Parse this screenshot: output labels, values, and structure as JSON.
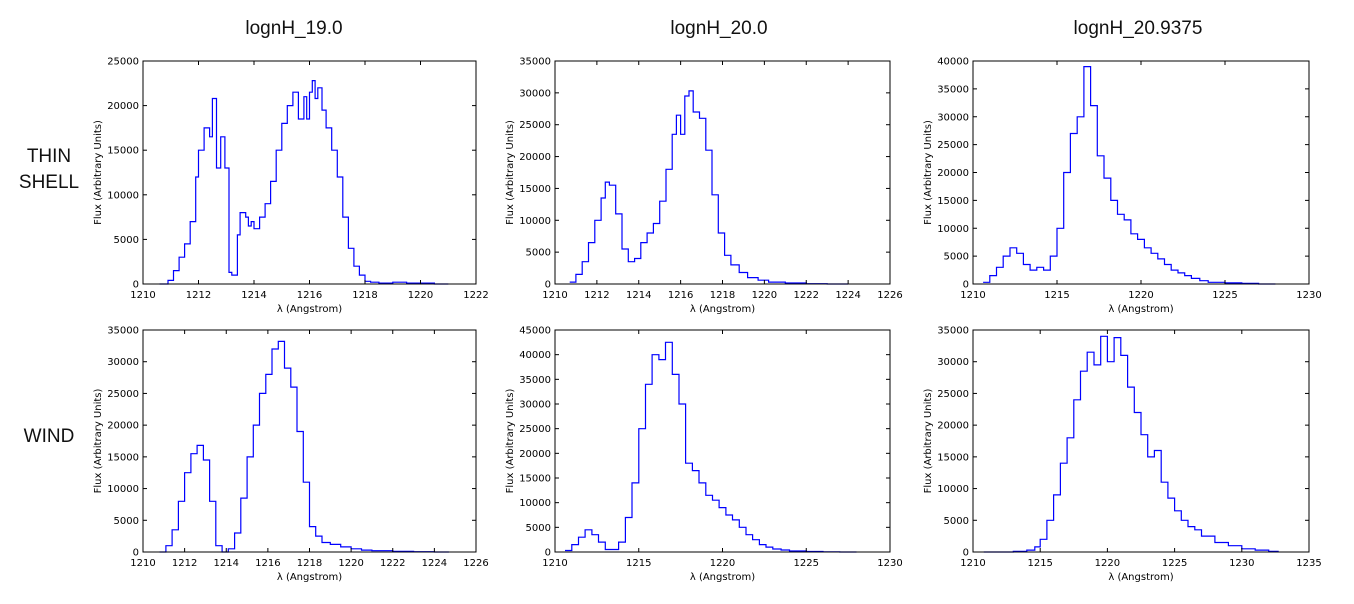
{
  "column_titles": [
    "lognH_19.0",
    "lognH_20.0",
    "lognH_20.9375"
  ],
  "row_labels": {
    "thin_shell_line1": "THIN",
    "thin_shell_line2": "SHELL",
    "wind": "WIND"
  },
  "colors": {
    "line": "#0000ff",
    "axis": "#000000",
    "background": "#ffffff"
  },
  "chart_data": [
    {
      "type": "line",
      "drawstyle": "steps",
      "title": "lognH_19.0",
      "row": "THIN SHELL",
      "xlabel": "λ (Angstrom)",
      "ylabel": "Flux (Arbitrary Units)",
      "xlim": [
        1210,
        1222
      ],
      "ylim": [
        0,
        25000
      ],
      "xticks": [
        1210,
        1212,
        1214,
        1216,
        1218,
        1220,
        1222
      ],
      "yticks": [
        0,
        5000,
        10000,
        15000,
        20000,
        25000
      ],
      "x": [
        1210.6,
        1210.9,
        1211.1,
        1211.3,
        1211.5,
        1211.7,
        1211.9,
        1212.0,
        1212.2,
        1212.4,
        1212.5,
        1212.65,
        1212.8,
        1212.95,
        1213.1,
        1213.2,
        1213.3,
        1213.4,
        1213.5,
        1213.7,
        1213.8,
        1213.9,
        1214.0,
        1214.2,
        1214.4,
        1214.6,
        1214.8,
        1215.0,
        1215.2,
        1215.4,
        1215.6,
        1215.8,
        1215.9,
        1216.0,
        1216.1,
        1216.2,
        1216.3,
        1216.45,
        1216.6,
        1216.8,
        1217.0,
        1217.2,
        1217.4,
        1217.6,
        1217.8,
        1218.0,
        1218.2,
        1218.5,
        1219.0,
        1219.5,
        1220.0,
        1220.5,
        1221.0
      ],
      "y": [
        0,
        400,
        1500,
        3000,
        4500,
        7000,
        12000,
        15000,
        17500,
        16500,
        20800,
        13000,
        16500,
        13000,
        1300,
        1000,
        1000,
        5500,
        8000,
        7500,
        6500,
        7000,
        6200,
        7500,
        9000,
        11500,
        15000,
        18000,
        20000,
        21500,
        18500,
        21000,
        18500,
        21500,
        22800,
        20800,
        22000,
        19500,
        17500,
        15000,
        12000,
        7500,
        4000,
        2000,
        1000,
        300,
        200,
        100,
        200,
        100,
        100,
        0,
        0
      ]
    },
    {
      "type": "line",
      "drawstyle": "steps",
      "title": "lognH_20.0",
      "row": "THIN SHELL",
      "xlabel": "λ (Angstrom)",
      "ylabel": "Flux (Arbitrary Units)",
      "xlim": [
        1210,
        1226
      ],
      "ylim": [
        0,
        35000
      ],
      "xticks": [
        1210,
        1212,
        1214,
        1216,
        1218,
        1220,
        1222,
        1224,
        1226
      ],
      "yticks": [
        0,
        5000,
        10000,
        15000,
        20000,
        25000,
        30000,
        35000
      ],
      "x": [
        1210.7,
        1211.0,
        1211.3,
        1211.6,
        1211.9,
        1212.2,
        1212.4,
        1212.6,
        1212.9,
        1213.2,
        1213.5,
        1213.8,
        1214.1,
        1214.4,
        1214.7,
        1215.0,
        1215.3,
        1215.6,
        1215.8,
        1216.0,
        1216.2,
        1216.4,
        1216.6,
        1216.9,
        1217.2,
        1217.5,
        1217.8,
        1218.1,
        1218.4,
        1218.8,
        1219.2,
        1219.7,
        1220.2,
        1221.0,
        1222.0,
        1223.0,
        1224.0
      ],
      "y": [
        300,
        1500,
        3500,
        6500,
        10000,
        13500,
        16000,
        15500,
        11000,
        5500,
        3500,
        4000,
        6500,
        8000,
        9500,
        13000,
        18000,
        23500,
        26500,
        23500,
        29500,
        30300,
        27000,
        26000,
        21000,
        14000,
        8000,
        4500,
        3000,
        1800,
        1000,
        600,
        300,
        150,
        50,
        0,
        0
      ]
    },
    {
      "type": "line",
      "drawstyle": "steps",
      "title": "lognH_20.9375",
      "row": "THIN SHELL",
      "xlabel": "λ (Angstrom)",
      "ylabel": "Flux (Arbitrary Units)",
      "xlim": [
        1210,
        1230
      ],
      "ylim": [
        0,
        40000
      ],
      "xticks": [
        1210,
        1215,
        1220,
        1225,
        1230
      ],
      "yticks": [
        0,
        5000,
        10000,
        15000,
        20000,
        25000,
        30000,
        35000,
        40000
      ],
      "x": [
        1210.6,
        1211.0,
        1211.4,
        1211.8,
        1212.2,
        1212.6,
        1213.0,
        1213.4,
        1213.8,
        1214.2,
        1214.6,
        1215.0,
        1215.4,
        1215.8,
        1216.2,
        1216.6,
        1217.0,
        1217.4,
        1217.8,
        1218.2,
        1218.6,
        1219.0,
        1219.4,
        1219.8,
        1220.2,
        1220.6,
        1221.0,
        1221.4,
        1221.8,
        1222.2,
        1222.6,
        1223.0,
        1223.5,
        1224.0,
        1225.0,
        1226.0,
        1227.0,
        1228.0
      ],
      "y": [
        300,
        1500,
        3000,
        5000,
        6500,
        5500,
        3500,
        2500,
        3000,
        2500,
        5000,
        10000,
        20000,
        27000,
        30000,
        39000,
        32000,
        23000,
        19000,
        15000,
        12500,
        11500,
        9000,
        8000,
        6500,
        5500,
        4500,
        3500,
        2500,
        2000,
        1500,
        1000,
        600,
        300,
        200,
        100,
        0,
        0
      ]
    },
    {
      "type": "line",
      "drawstyle": "steps",
      "title": "lognH_19.0",
      "row": "WIND",
      "xlabel": "λ (Angstrom)",
      "ylabel": "Flux (Arbitrary Units)",
      "xlim": [
        1210,
        1226
      ],
      "ylim": [
        0,
        35000
      ],
      "xticks": [
        1210,
        1212,
        1214,
        1216,
        1218,
        1220,
        1222,
        1224,
        1226
      ],
      "yticks": [
        0,
        5000,
        10000,
        15000,
        20000,
        25000,
        30000,
        35000
      ],
      "x": [
        1210.8,
        1211.1,
        1211.4,
        1211.7,
        1212.0,
        1212.3,
        1212.6,
        1212.9,
        1213.2,
        1213.5,
        1213.8,
        1214.1,
        1214.4,
        1214.7,
        1215.0,
        1215.3,
        1215.6,
        1215.9,
        1216.2,
        1216.5,
        1216.8,
        1217.1,
        1217.4,
        1217.7,
        1218.0,
        1218.3,
        1218.6,
        1219.0,
        1219.5,
        1220.0,
        1220.5,
        1221.0,
        1222.0,
        1223.0,
        1224.0,
        1224.7
      ],
      "y": [
        0,
        1000,
        3500,
        8000,
        12500,
        15500,
        16800,
        14500,
        8000,
        1000,
        0,
        500,
        3000,
        8500,
        15000,
        20000,
        25000,
        28000,
        32000,
        33200,
        29000,
        26000,
        19000,
        11000,
        4000,
        2500,
        1500,
        1200,
        800,
        500,
        300,
        200,
        100,
        50,
        0,
        0
      ]
    },
    {
      "type": "line",
      "drawstyle": "steps",
      "title": "lognH_20.0",
      "row": "WIND",
      "xlabel": "λ (Angstrom)",
      "ylabel": "Flux (Arbitrary Units)",
      "xlim": [
        1210,
        1230
      ],
      "ylim": [
        0,
        45000
      ],
      "xticks": [
        1210,
        1215,
        1220,
        1225,
        1230
      ],
      "yticks": [
        0,
        5000,
        10000,
        15000,
        20000,
        25000,
        30000,
        35000,
        40000,
        45000
      ],
      "x": [
        1210.6,
        1211.0,
        1211.4,
        1211.8,
        1212.2,
        1212.6,
        1213.0,
        1213.4,
        1213.8,
        1214.2,
        1214.6,
        1215.0,
        1215.4,
        1215.8,
        1216.2,
        1216.6,
        1217.0,
        1217.4,
        1217.8,
        1218.2,
        1218.6,
        1219.0,
        1219.4,
        1219.8,
        1220.2,
        1220.6,
        1221.0,
        1221.4,
        1221.8,
        1222.2,
        1222.6,
        1223.0,
        1223.5,
        1224.0,
        1225.0,
        1226.0,
        1227.0,
        1228.0
      ],
      "y": [
        300,
        1500,
        3000,
        4500,
        3500,
        2000,
        500,
        500,
        2000,
        7000,
        14000,
        25000,
        34000,
        40000,
        39000,
        42500,
        36000,
        30000,
        18000,
        16500,
        14000,
        11500,
        10500,
        9000,
        7500,
        6500,
        5000,
        3500,
        2500,
        1500,
        1000,
        600,
        400,
        200,
        100,
        50,
        0,
        0
      ]
    },
    {
      "type": "line",
      "drawstyle": "steps",
      "title": "lognH_20.9375",
      "row": "WIND",
      "xlabel": "λ (Angstrom)",
      "ylabel": "Flux (Arbitrary Units)",
      "xlim": [
        1210,
        1235
      ],
      "ylim": [
        0,
        35000
      ],
      "xticks": [
        1210,
        1215,
        1220,
        1225,
        1230,
        1235
      ],
      "yticks": [
        0,
        5000,
        10000,
        15000,
        20000,
        25000,
        30000,
        35000
      ],
      "x": [
        1210.8,
        1212.0,
        1213.0,
        1214.0,
        1214.6,
        1215.0,
        1215.5,
        1216.0,
        1216.5,
        1217.0,
        1217.5,
        1218.0,
        1218.5,
        1219.0,
        1219.5,
        1220.0,
        1220.5,
        1221.0,
        1221.5,
        1222.0,
        1222.5,
        1223.0,
        1223.5,
        1224.0,
        1224.5,
        1225.0,
        1225.5,
        1226.0,
        1226.5,
        1227.0,
        1228.0,
        1229.0,
        1230.0,
        1231.0,
        1232.0,
        1232.7
      ],
      "y": [
        0,
        0,
        100,
        300,
        800,
        2000,
        5000,
        9000,
        14000,
        18000,
        24000,
        28500,
        31500,
        29500,
        34000,
        30000,
        33800,
        31000,
        26000,
        22000,
        18500,
        15000,
        16000,
        11000,
        8500,
        6500,
        5000,
        4000,
        3500,
        2500,
        1500,
        1000,
        500,
        300,
        100,
        0
      ]
    }
  ]
}
